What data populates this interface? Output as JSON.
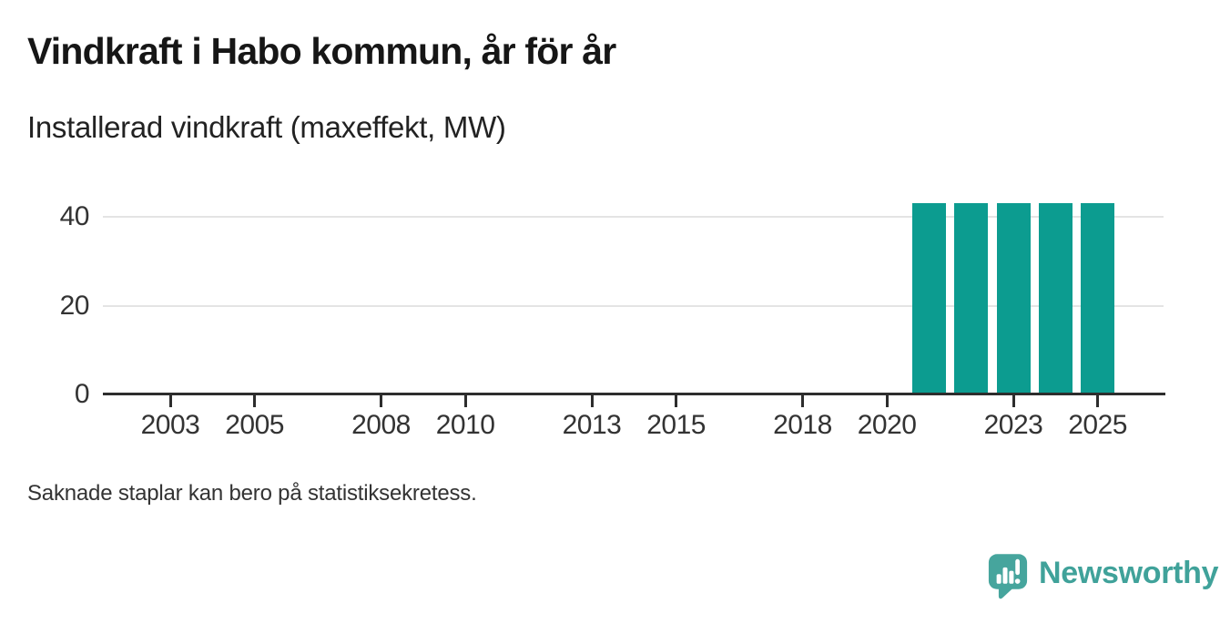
{
  "header": {
    "title": "Vindkraft i Habo kommun, år för år",
    "subtitle": "Installerad vindkraft (maxeffekt, MW)"
  },
  "chart_data": {
    "type": "bar",
    "title": "Vindkraft i Habo kommun, år för år",
    "subtitle_ylabel": "Installerad vindkraft (maxeffekt, MW)",
    "categories": [
      2002,
      2003,
      2004,
      2005,
      2006,
      2007,
      2008,
      2009,
      2010,
      2011,
      2012,
      2013,
      2014,
      2015,
      2016,
      2017,
      2018,
      2019,
      2020,
      2021,
      2022,
      2023,
      2024,
      2025
    ],
    "values": [
      null,
      null,
      null,
      null,
      null,
      null,
      null,
      null,
      null,
      null,
      null,
      null,
      null,
      null,
      null,
      null,
      null,
      null,
      null,
      43,
      43,
      43,
      43,
      43
    ],
    "x_tick_labels": [
      "2003",
      "2005",
      "2008",
      "2010",
      "2013",
      "2015",
      "2018",
      "2020",
      "2023",
      "2025"
    ],
    "y_ticks": [
      0,
      20,
      40
    ],
    "ylim": [
      0,
      46
    ],
    "xlim": [
      2001.4,
      2026.6
    ],
    "grid": "horizontal-only",
    "legend": "none",
    "annotation": "Saknade staplar kan bero på statistiksekretess."
  },
  "footer": {
    "note": "Saknade staplar kan bero på statistiksekretess.",
    "brand": "Newsworthy"
  },
  "colors": {
    "bar": "#0c9c90",
    "axis": "#2d2d2d",
    "grid": "#e4e4e4",
    "tick_label": "#333333",
    "brand": "#40a29a",
    "brand_bubble": "#46a59d"
  },
  "icons": {
    "logo": "newsworthy-speech-bubble-chart-icon"
  }
}
